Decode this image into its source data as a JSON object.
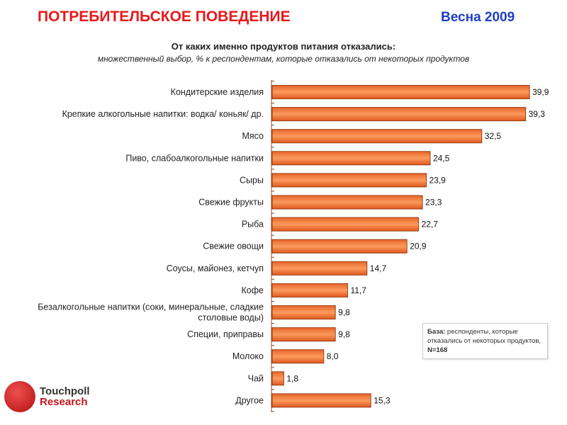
{
  "header": {
    "title": "ПОТРЕБИТЕЛЬСКОЕ ПОВЕДЕНИЕ",
    "season": "Весна 2009"
  },
  "chart_data": {
    "type": "bar",
    "orientation": "horizontal",
    "title": "От каких именно продуктов питания отказались:",
    "subtitle": "множественный выбор, % к респондентам, которые отказались от некоторых продуктов",
    "categories": [
      [
        "Кондитерские изделия"
      ],
      [
        "Крепкие алкогольные напитки: водка/ коньяк/ др."
      ],
      [
        "Мясо"
      ],
      [
        "Пиво, слабоалкогольные напитки"
      ],
      [
        "Сыры"
      ],
      [
        "Свежие фрукты"
      ],
      [
        "Рыба"
      ],
      [
        "Свежие овощи"
      ],
      [
        "Соусы, майонез, кетчуп"
      ],
      [
        "Кофе"
      ],
      [
        "Безалкогольные напитки (соки, минеральные, сладкие",
        "столовые воды)"
      ],
      [
        "Специи, приправы"
      ],
      [
        "Молоко"
      ],
      [
        "Чай"
      ],
      [
        "Другое"
      ]
    ],
    "values": [
      39.9,
      39.3,
      32.5,
      24.5,
      23.9,
      23.3,
      22.7,
      20.9,
      14.7,
      11.7,
      9.8,
      9.8,
      8.0,
      1.8,
      15.3
    ],
    "value_labels": [
      "39,9",
      "39,3",
      "32,5",
      "24,5",
      "23,9",
      "23,3",
      "22,7",
      "20,9",
      "14,7",
      "11,7",
      "9,8",
      "9,8",
      "8,0",
      "1,8",
      "15,3"
    ],
    "bar_color": "#f07b3a",
    "xlim": [
      0,
      40
    ]
  },
  "note": {
    "label": "База:",
    "text": " респонденты, которые отказались от некоторых продуктов, ",
    "n": "N=168"
  },
  "logo": {
    "line1": "Touchpoll",
    "line2": "Research"
  }
}
